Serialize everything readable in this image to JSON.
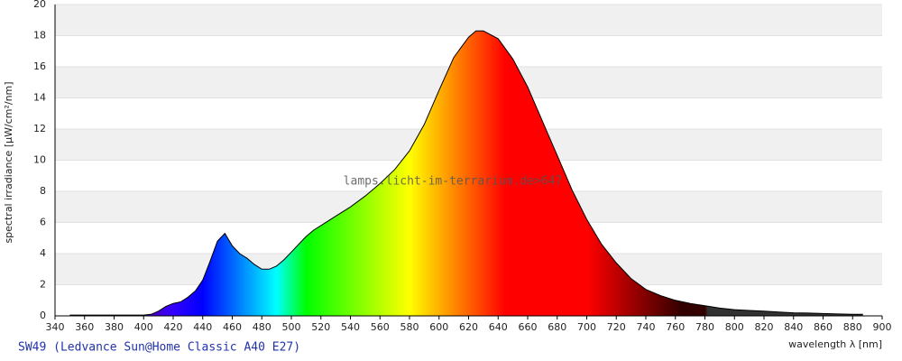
{
  "chart_data": {
    "type": "spectrum",
    "title": "SW49 (Ledvance Sun@Home Classic A40 E27)",
    "watermark": "lamps.licht-im-terrarium.de>647",
    "x_label": "wavelength λ [nm]",
    "y_label": "spectral irradiance [µW/cm²/nm]",
    "x": [
      350,
      360,
      370,
      380,
      390,
      400,
      405,
      410,
      415,
      420,
      425,
      430,
      435,
      440,
      445,
      450,
      455,
      460,
      465,
      470,
      475,
      480,
      485,
      490,
      495,
      500,
      505,
      510,
      515,
      520,
      530,
      540,
      550,
      560,
      570,
      580,
      590,
      600,
      610,
      620,
      625,
      630,
      640,
      650,
      660,
      670,
      680,
      690,
      700,
      710,
      720,
      730,
      740,
      750,
      760,
      770,
      780,
      790,
      800,
      810,
      820,
      830,
      840,
      850,
      860,
      870,
      880,
      887
    ],
    "values": [
      0.05,
      0.05,
      0.05,
      0.05,
      0.05,
      0.05,
      0.1,
      0.3,
      0.6,
      0.8,
      0.9,
      1.2,
      1.6,
      2.3,
      3.5,
      4.8,
      5.3,
      4.5,
      4.0,
      3.7,
      3.3,
      3.0,
      3.0,
      3.2,
      3.6,
      4.1,
      4.6,
      5.1,
      5.5,
      5.8,
      6.4,
      7.0,
      7.7,
      8.5,
      9.4,
      10.6,
      12.3,
      14.5,
      16.6,
      17.9,
      18.3,
      18.3,
      17.8,
      16.5,
      14.7,
      12.5,
      10.3,
      8.1,
      6.2,
      4.6,
      3.4,
      2.4,
      1.7,
      1.3,
      1.0,
      0.8,
      0.65,
      0.5,
      0.4,
      0.35,
      0.3,
      0.25,
      0.2,
      0.18,
      0.15,
      0.12,
      0.1,
      0.1
    ],
    "line_color": "#000000",
    "xlim": [
      340,
      900
    ],
    "xticks": [
      340,
      360,
      380,
      400,
      420,
      440,
      460,
      480,
      500,
      520,
      540,
      560,
      580,
      600,
      620,
      640,
      660,
      680,
      700,
      720,
      740,
      760,
      780,
      800,
      820,
      840,
      860,
      880,
      900
    ],
    "ylim": [
      0,
      20
    ],
    "yticks": [
      0,
      2,
      4,
      6,
      8,
      10,
      12,
      14,
      16,
      18,
      20
    ],
    "grid": true
  }
}
